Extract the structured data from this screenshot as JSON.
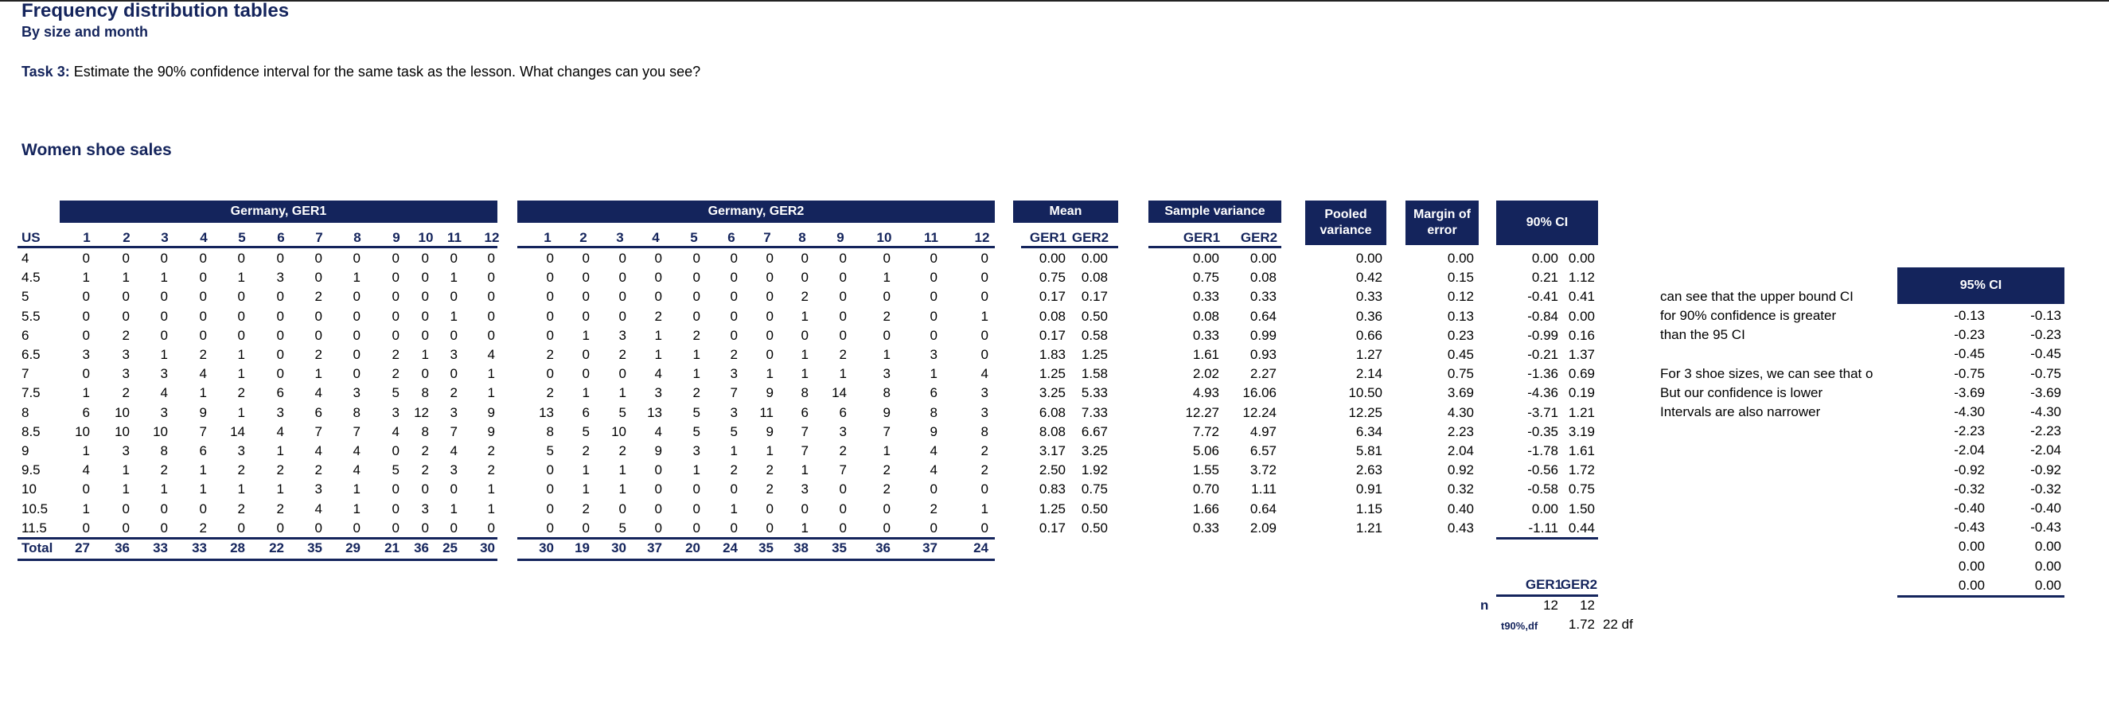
{
  "title": "Frequency distribution tables",
  "subtitle": "By size and month",
  "task": {
    "label": "Task 3:",
    "text": "Estimate the 90% confidence interval for the same task as the lesson. What changes can you see?"
  },
  "section": "Women shoe sales",
  "headers": {
    "ger1": "Germany, GER1",
    "ger2": "Germany, GER2",
    "mean": "Mean",
    "sample_variance": "Sample variance",
    "pooled_variance": "Pooled variance",
    "margin_of_error": "Margin of error",
    "ci90": "90% CI",
    "ci95": "95% CI",
    "us": "US",
    "g1": "GER1",
    "g2": "GER2",
    "months": [
      "1",
      "2",
      "3",
      "4",
      "5",
      "6",
      "7",
      "8",
      "9",
      "10",
      "11",
      "12"
    ]
  },
  "sizes": [
    "4",
    "4.5",
    "5",
    "5.5",
    "6",
    "6.5",
    "7",
    "7.5",
    "8",
    "8.5",
    "9",
    "9.5",
    "10",
    "10.5",
    "11.5"
  ],
  "ger1": [
    [
      0,
      0,
      0,
      0,
      0,
      0,
      0,
      0,
      0,
      0,
      0,
      0
    ],
    [
      1,
      1,
      1,
      0,
      1,
      3,
      0,
      1,
      0,
      0,
      1,
      0
    ],
    [
      0,
      0,
      0,
      0,
      0,
      0,
      2,
      0,
      0,
      0,
      0,
      0
    ],
    [
      0,
      0,
      0,
      0,
      0,
      0,
      0,
      0,
      0,
      0,
      1,
      0
    ],
    [
      0,
      2,
      0,
      0,
      0,
      0,
      0,
      0,
      0,
      0,
      0,
      0
    ],
    [
      3,
      3,
      1,
      2,
      1,
      0,
      2,
      0,
      2,
      1,
      3,
      4
    ],
    [
      0,
      3,
      3,
      4,
      1,
      0,
      1,
      0,
      2,
      0,
      0,
      1
    ],
    [
      1,
      2,
      4,
      1,
      2,
      6,
      4,
      3,
      5,
      8,
      2,
      1
    ],
    [
      6,
      10,
      3,
      9,
      1,
      3,
      6,
      8,
      3,
      12,
      3,
      9
    ],
    [
      10,
      10,
      10,
      7,
      14,
      4,
      7,
      7,
      4,
      8,
      7,
      9
    ],
    [
      1,
      3,
      8,
      6,
      3,
      1,
      4,
      4,
      0,
      2,
      4,
      2
    ],
    [
      4,
      1,
      2,
      1,
      2,
      2,
      2,
      4,
      5,
      2,
      3,
      2
    ],
    [
      0,
      1,
      1,
      1,
      1,
      1,
      3,
      1,
      0,
      0,
      0,
      1
    ],
    [
      1,
      0,
      0,
      0,
      2,
      2,
      4,
      1,
      0,
      3,
      1,
      1
    ],
    [
      0,
      0,
      0,
      2,
      0,
      0,
      0,
      0,
      0,
      0,
      0,
      0
    ]
  ],
  "ger1_total": [
    27,
    36,
    33,
    33,
    28,
    22,
    35,
    29,
    21,
    36,
    25,
    30
  ],
  "ger2": [
    [
      0,
      0,
      0,
      0,
      0,
      0,
      0,
      0,
      0,
      0,
      0,
      0
    ],
    [
      0,
      0,
      0,
      0,
      0,
      0,
      0,
      0,
      0,
      1,
      0,
      0
    ],
    [
      0,
      0,
      0,
      0,
      0,
      0,
      0,
      2,
      0,
      0,
      0,
      0
    ],
    [
      0,
      0,
      0,
      2,
      0,
      0,
      0,
      1,
      0,
      2,
      0,
      1
    ],
    [
      0,
      1,
      3,
      1,
      2,
      0,
      0,
      0,
      0,
      0,
      0,
      0
    ],
    [
      2,
      0,
      2,
      1,
      1,
      2,
      0,
      1,
      2,
      1,
      3,
      0
    ],
    [
      0,
      0,
      0,
      4,
      1,
      3,
      1,
      1,
      1,
      3,
      1,
      4
    ],
    [
      2,
      1,
      1,
      3,
      2,
      7,
      9,
      8,
      14,
      8,
      6,
      3
    ],
    [
      13,
      6,
      5,
      13,
      5,
      3,
      11,
      6,
      6,
      9,
      8,
      3
    ],
    [
      8,
      5,
      10,
      4,
      5,
      5,
      9,
      7,
      3,
      7,
      9,
      8
    ],
    [
      5,
      2,
      2,
      9,
      3,
      1,
      1,
      7,
      2,
      1,
      4,
      2
    ],
    [
      0,
      1,
      1,
      0,
      1,
      2,
      2,
      1,
      7,
      2,
      4,
      2
    ],
    [
      0,
      1,
      1,
      0,
      0,
      0,
      2,
      3,
      0,
      2,
      0,
      0
    ],
    [
      0,
      2,
      0,
      0,
      0,
      1,
      0,
      0,
      0,
      0,
      2,
      1
    ],
    [
      0,
      0,
      5,
      0,
      0,
      0,
      0,
      1,
      0,
      0,
      0,
      0
    ]
  ],
  "ger2_total": [
    30,
    19,
    30,
    37,
    20,
    24,
    35,
    38,
    35,
    36,
    37,
    24
  ],
  "mean": [
    [
      "0.00",
      "0.00"
    ],
    [
      "0.75",
      "0.08"
    ],
    [
      "0.17",
      "0.17"
    ],
    [
      "0.08",
      "0.50"
    ],
    [
      "0.17",
      "0.58"
    ],
    [
      "1.83",
      "1.25"
    ],
    [
      "1.25",
      "1.58"
    ],
    [
      "3.25",
      "5.33"
    ],
    [
      "6.08",
      "7.33"
    ],
    [
      "8.08",
      "6.67"
    ],
    [
      "3.17",
      "3.25"
    ],
    [
      "2.50",
      "1.92"
    ],
    [
      "0.83",
      "0.75"
    ],
    [
      "1.25",
      "0.50"
    ],
    [
      "0.17",
      "0.50"
    ]
  ],
  "variance": [
    [
      "0.00",
      "0.00"
    ],
    [
      "0.75",
      "0.08"
    ],
    [
      "0.33",
      "0.33"
    ],
    [
      "0.08",
      "0.64"
    ],
    [
      "0.33",
      "0.99"
    ],
    [
      "1.61",
      "0.93"
    ],
    [
      "2.02",
      "2.27"
    ],
    [
      "4.93",
      "16.06"
    ],
    [
      "12.27",
      "12.24"
    ],
    [
      "7.72",
      "4.97"
    ],
    [
      "5.06",
      "6.57"
    ],
    [
      "1.55",
      "3.72"
    ],
    [
      "0.70",
      "1.11"
    ],
    [
      "1.66",
      "0.64"
    ],
    [
      "0.33",
      "2.09"
    ]
  ],
  "pooled": [
    "0.00",
    "0.42",
    "0.33",
    "0.36",
    "0.66",
    "1.27",
    "2.14",
    "10.50",
    "12.25",
    "6.34",
    "5.81",
    "2.63",
    "0.91",
    "1.15",
    "1.21"
  ],
  "margin": [
    "0.00",
    "0.15",
    "0.12",
    "0.13",
    "0.23",
    "0.45",
    "0.75",
    "3.69",
    "4.30",
    "2.23",
    "2.04",
    "0.92",
    "0.32",
    "0.40",
    "0.43"
  ],
  "ci90": [
    [
      "0.00",
      "0.00"
    ],
    [
      "0.21",
      "1.12"
    ],
    [
      "-0.41",
      "0.41"
    ],
    [
      "-0.84",
      "0.00"
    ],
    [
      "-0.99",
      "0.16"
    ],
    [
      "-0.21",
      "1.37"
    ],
    [
      "-1.36",
      "0.69"
    ],
    [
      "-4.36",
      "0.19"
    ],
    [
      "-3.71",
      "1.21"
    ],
    [
      "-0.35",
      "3.19"
    ],
    [
      "-1.78",
      "1.61"
    ],
    [
      "-0.56",
      "1.72"
    ],
    [
      "-0.58",
      "0.75"
    ],
    [
      "0.00",
      "1.50"
    ],
    [
      "-1.11",
      "0.44"
    ]
  ],
  "ci95": [
    [
      "-0.13",
      "-0.13"
    ],
    [
      "-0.23",
      "-0.23"
    ],
    [
      "-0.45",
      "-0.45"
    ],
    [
      "-0.75",
      "-0.75"
    ],
    [
      "-3.69",
      "-3.69"
    ],
    [
      "-4.30",
      "-4.30"
    ],
    [
      "-2.23",
      "-2.23"
    ],
    [
      "-2.04",
      "-2.04"
    ],
    [
      "-0.92",
      "-0.92"
    ],
    [
      "-0.32",
      "-0.32"
    ],
    [
      "-0.40",
      "-0.40"
    ],
    [
      "-0.43",
      "-0.43"
    ],
    [
      "0.00",
      "0.00"
    ],
    [
      "0.00",
      "0.00"
    ],
    [
      "0.00",
      "0.00"
    ]
  ],
  "notes": [
    "can see that the upper bound CI",
    "for 90% confidence is greater",
    "than the 95 CI",
    "",
    "For 3 shoe sizes, we can see that o",
    "But our confidence is lower",
    "Intervals are also narrower"
  ],
  "total_label": "Total",
  "stats": {
    "n_label": "n",
    "n_ger1": "12",
    "n_ger2": "12",
    "t_label": "t90%,df",
    "t_value": "1.72",
    "df_label": "22 df"
  }
}
